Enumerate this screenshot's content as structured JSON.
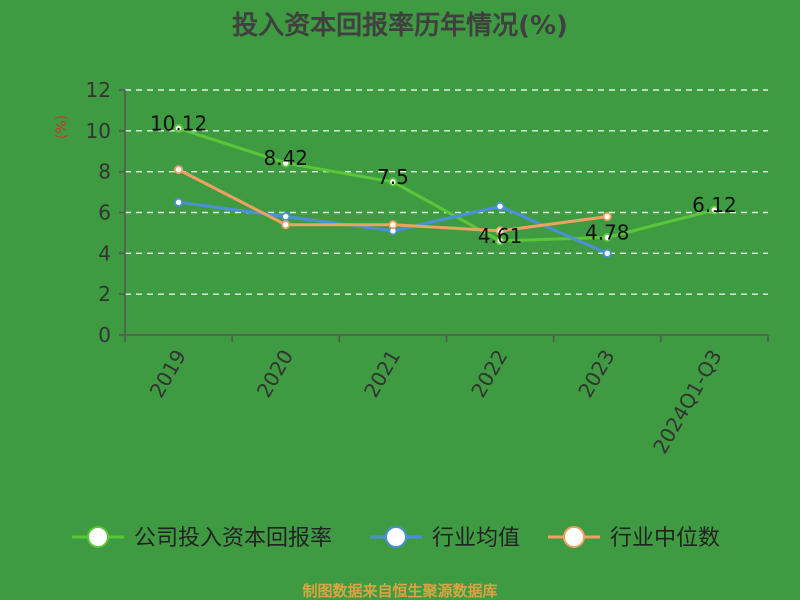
{
  "chart_data": {
    "type": "line",
    "title": "投入资本回报率历年情况(%)",
    "ylabel": "(%)",
    "xlabel": "",
    "ylim": [
      0,
      12
    ],
    "yticks": [
      0,
      2,
      4,
      6,
      8,
      10,
      12
    ],
    "categories": [
      "2019",
      "2020",
      "2021",
      "2022",
      "2023",
      "2024Q1-Q3"
    ],
    "grid": true,
    "legend_position": "bottom",
    "series": [
      {
        "name": "公司投入资本回报率",
        "color": "#5ac73a",
        "values": [
          10.12,
          8.42,
          7.5,
          4.61,
          4.78,
          6.12
        ],
        "labels": [
          "10.12",
          "8.42",
          "7.5",
          "4.61",
          "4.78",
          "6.12"
        ]
      },
      {
        "name": "行业均值",
        "color": "#4a90d9",
        "values": [
          6.5,
          5.8,
          5.1,
          6.3,
          4.0,
          null
        ]
      },
      {
        "name": "行业中位数",
        "color": "#f0a060",
        "values": [
          8.1,
          5.4,
          5.4,
          5.1,
          5.8,
          null
        ]
      }
    ]
  },
  "source": "制图数据来自恒生聚源数据库"
}
